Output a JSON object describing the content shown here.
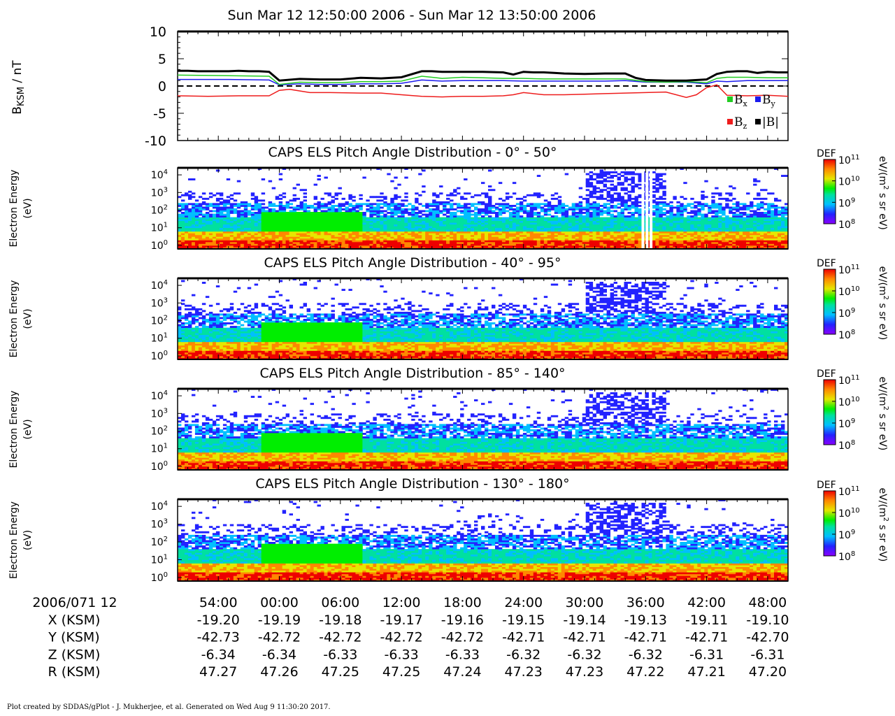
{
  "title": "Sun Mar 12 12:50:00 2006 - Sun Mar 12 13:50:00 2006",
  "footer": "Plot created by SDDAS/gPlot - J. Mukherjee, et al.  Generated on Wed Aug 9 11:30:20 2017.",
  "colors": {
    "Bx": "#22cc22",
    "By": "#1a1aee",
    "Bz": "#ee1c1c",
    "B": "#000000"
  },
  "chart_data": [
    {
      "type": "line",
      "ylabel_main": "B",
      "ylabel_sub": "KSM",
      "ylabel_unit": " / nT",
      "ylim": [
        -10,
        10
      ],
      "yticks": [
        "10",
        "5",
        "0",
        "-5",
        "-10"
      ],
      "xlim_minutes": [
        0,
        60
      ],
      "zero_line": "dashed",
      "legend": {
        "placement": "bottom-right",
        "entries": [
          {
            "key": "Bx",
            "base": "B",
            "sub": "x"
          },
          {
            "key": "By",
            "base": "B",
            "sub": "y"
          },
          {
            "key": "Bz",
            "base": "B",
            "sub": "z"
          },
          {
            "key": "B",
            "base": "|B|",
            "sub": ""
          }
        ]
      },
      "series": [
        {
          "key": "B",
          "t": [
            0,
            1,
            2,
            3,
            4,
            5,
            6,
            7,
            8,
            9,
            10,
            12,
            14,
            16,
            18,
            20,
            22,
            24,
            25,
            26,
            28,
            30,
            32,
            33,
            34,
            35,
            36,
            37,
            38,
            40,
            42,
            43,
            44,
            45,
            46,
            48,
            50,
            52,
            53,
            54,
            55,
            56,
            57,
            58,
            59,
            60
          ],
          "y": [
            2.8,
            2.8,
            2.7,
            2.7,
            2.7,
            2.7,
            2.8,
            2.7,
            2.7,
            2.6,
            1.0,
            1.3,
            1.2,
            1.2,
            1.5,
            1.4,
            1.6,
            2.7,
            2.7,
            2.6,
            2.6,
            2.6,
            2.5,
            2.1,
            2.6,
            2.5,
            2.5,
            2.4,
            2.3,
            2.2,
            2.3,
            2.3,
            2.3,
            1.5,
            1.1,
            1.0,
            1.0,
            1.2,
            2.2,
            2.6,
            2.7,
            2.7,
            2.4,
            2.6,
            2.5,
            2.5
          ]
        },
        {
          "key": "Bx",
          "t": [
            0,
            5,
            9,
            10,
            12,
            14,
            16,
            18,
            20,
            22,
            24,
            25,
            26,
            28,
            30,
            32,
            34,
            36,
            38,
            40,
            42,
            44,
            46,
            48,
            50,
            52,
            53,
            54,
            56,
            58,
            60
          ],
          "y": [
            2.0,
            1.9,
            1.8,
            0.3,
            0.7,
            0.6,
            0.6,
            0.8,
            0.8,
            0.9,
            1.8,
            1.6,
            1.4,
            1.6,
            1.5,
            1.4,
            1.4,
            1.3,
            1.3,
            1.3,
            1.3,
            1.3,
            0.8,
            0.7,
            0.8,
            0.6,
            1.4,
            1.6,
            1.6,
            1.5,
            1.5
          ]
        },
        {
          "key": "By",
          "t": [
            0,
            5,
            9,
            10,
            12,
            14,
            16,
            18,
            20,
            22,
            24,
            26,
            28,
            30,
            32,
            34,
            36,
            38,
            40,
            42,
            44,
            46,
            48,
            50,
            52,
            53,
            54,
            56,
            58,
            60
          ],
          "y": [
            1.2,
            1.2,
            1.1,
            0.2,
            0.4,
            0.3,
            0.3,
            0.4,
            0.4,
            0.5,
            1.1,
            0.9,
            1.0,
            1.0,
            1.0,
            0.9,
            0.9,
            0.9,
            0.9,
            0.9,
            1.0,
            0.7,
            0.7,
            0.7,
            0.4,
            0.9,
            0.8,
            1.0,
            1.0,
            1.0
          ]
        },
        {
          "key": "Bz",
          "t": [
            0,
            3,
            6,
            9,
            10,
            11,
            13,
            15,
            18,
            20,
            22,
            24,
            26,
            28,
            30,
            32,
            33,
            34,
            36,
            38,
            40,
            42,
            44,
            46,
            48,
            50,
            51,
            52,
            53,
            54,
            56,
            58,
            60
          ],
          "y": [
            -1.8,
            -1.9,
            -1.8,
            -1.8,
            -0.8,
            -0.6,
            -1.2,
            -1.2,
            -1.3,
            -1.3,
            -1.6,
            -1.9,
            -2.0,
            -1.9,
            -1.9,
            -1.8,
            -1.6,
            -1.2,
            -1.6,
            -1.6,
            -1.5,
            -1.4,
            -1.3,
            -1.2,
            -1.1,
            -2.1,
            -1.6,
            -0.3,
            0.2,
            -1.7,
            -1.8,
            -1.7,
            -1.9
          ]
        }
      ]
    },
    {
      "type": "heatmap",
      "title": "CAPS ELS Pitch Angle Distribution - 0° - 50°",
      "ylabel": [
        "Electron Energy",
        "(eV)"
      ],
      "yticks": [
        {
          "base": "10",
          "exp": "4"
        },
        {
          "base": "10",
          "exp": "3"
        },
        {
          "base": "10",
          "exp": "2"
        },
        {
          "base": "10",
          "exp": "1"
        },
        {
          "base": "10",
          "exp": "0"
        }
      ],
      "ylim_log10": [
        -0.2,
        4.4
      ],
      "colorbar": {
        "label": "DEF",
        "unit_parts": [
          "eV/(m",
          "2",
          " s sr eV)"
        ],
        "ticks": [
          {
            "base": "10",
            "exp": "11"
          },
          {
            "base": "10",
            "exp": "10"
          },
          {
            "base": "10",
            "exp": "9"
          },
          {
            "base": "10",
            "exp": "8"
          }
        ],
        "range_log10": [
          8,
          11
        ]
      },
      "data_gaps_minutes": [
        45.6,
        46.0,
        46.4
      ]
    },
    {
      "type": "heatmap",
      "title": "CAPS ELS Pitch Angle Distribution - 40° - 95°",
      "ylabel": [
        "Electron Energy",
        "(eV)"
      ],
      "yticks": [
        {
          "base": "10",
          "exp": "4"
        },
        {
          "base": "10",
          "exp": "3"
        },
        {
          "base": "10",
          "exp": "2"
        },
        {
          "base": "10",
          "exp": "1"
        },
        {
          "base": "10",
          "exp": "0"
        }
      ],
      "ylim_log10": [
        -0.2,
        4.4
      ],
      "colorbar": {
        "label": "DEF",
        "unit_parts": [
          "eV/(m",
          "2",
          " s sr eV)"
        ],
        "ticks": [
          {
            "base": "10",
            "exp": "11"
          },
          {
            "base": "10",
            "exp": "10"
          },
          {
            "base": "10",
            "exp": "9"
          },
          {
            "base": "10",
            "exp": "8"
          }
        ],
        "range_log10": [
          8,
          11
        ]
      },
      "data_gaps_minutes": []
    },
    {
      "type": "heatmap",
      "title": "CAPS ELS Pitch Angle Distribution - 85° - 140°",
      "ylabel": [
        "Electron Energy",
        "(eV)"
      ],
      "yticks": [
        {
          "base": "10",
          "exp": "4"
        },
        {
          "base": "10",
          "exp": "3"
        },
        {
          "base": "10",
          "exp": "2"
        },
        {
          "base": "10",
          "exp": "1"
        },
        {
          "base": "10",
          "exp": "0"
        }
      ],
      "ylim_log10": [
        -0.2,
        4.4
      ],
      "colorbar": {
        "label": "DEF",
        "unit_parts": [
          "eV/(m",
          "2",
          " s sr eV)"
        ],
        "ticks": [
          {
            "base": "10",
            "exp": "11"
          },
          {
            "base": "10",
            "exp": "10"
          },
          {
            "base": "10",
            "exp": "9"
          },
          {
            "base": "10",
            "exp": "8"
          }
        ],
        "range_log10": [
          8,
          11
        ]
      },
      "data_gaps_minutes": []
    },
    {
      "type": "heatmap",
      "title": "CAPS ELS Pitch Angle Distribution - 130° - 180°",
      "ylabel": [
        "Electron Energy",
        "(eV)"
      ],
      "yticks": [
        {
          "base": "10",
          "exp": "4"
        },
        {
          "base": "10",
          "exp": "3"
        },
        {
          "base": "10",
          "exp": "2"
        },
        {
          "base": "10",
          "exp": "1"
        },
        {
          "base": "10",
          "exp": "0"
        }
      ],
      "ylim_log10": [
        -0.2,
        4.4
      ],
      "colorbar": {
        "label": "DEF",
        "unit_parts": [
          "eV/(m",
          "2",
          " s sr eV)"
        ],
        "ticks": [
          {
            "base": "10",
            "exp": "11"
          },
          {
            "base": "10",
            "exp": "10"
          },
          {
            "base": "10",
            "exp": "9"
          },
          {
            "base": "10",
            "exp": "8"
          }
        ],
        "range_log10": [
          8,
          11
        ]
      },
      "data_gaps_minutes": []
    }
  ],
  "ephemeris": {
    "header": "2006/071 12",
    "tick_minutes": [
      4,
      10,
      16,
      22,
      28,
      34,
      40,
      46,
      52,
      58
    ],
    "times": [
      "54:00",
      "00:00",
      "06:00",
      "12:00",
      "18:00",
      "24:00",
      "30:00",
      "36:00",
      "42:00",
      "48:00"
    ],
    "rows": [
      {
        "label": "X (KSM)",
        "values": [
          "-19.20",
          "-19.19",
          "-19.18",
          "-19.17",
          "-19.16",
          "-19.15",
          "-19.14",
          "-19.13",
          "-19.11",
          "-19.10"
        ]
      },
      {
        "label": "Y (KSM)",
        "values": [
          "-42.73",
          "-42.72",
          "-42.72",
          "-42.72",
          "-42.72",
          "-42.71",
          "-42.71",
          "-42.71",
          "-42.71",
          "-42.70"
        ]
      },
      {
        "label": "Z (KSM)",
        "values": [
          "-6.34",
          "-6.34",
          "-6.33",
          "-6.33",
          "-6.33",
          "-6.32",
          "-6.32",
          "-6.32",
          "-6.31",
          "-6.31"
        ]
      },
      {
        "label": "R (KSM)",
        "values": [
          "47.27",
          "47.26",
          "47.25",
          "47.25",
          "47.24",
          "47.23",
          "47.23",
          "47.22",
          "47.21",
          "47.20"
        ]
      }
    ]
  }
}
